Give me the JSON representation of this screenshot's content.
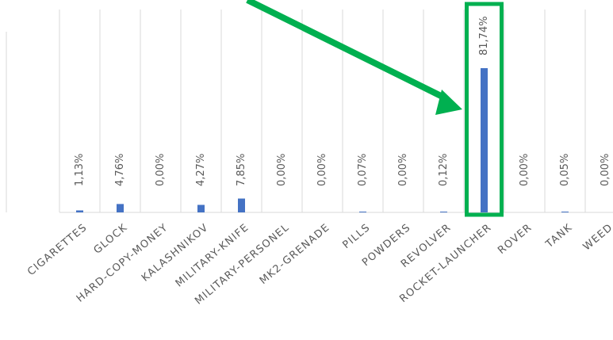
{
  "chart_data": {
    "type": "bar",
    "title": "",
    "xlabel": "",
    "ylabel": "",
    "categories": [
      "CIGARETTES",
      "GLOCK",
      "HARD-COPY-MONEY",
      "KALASHNIKOV",
      "MILITARY-KNIFE",
      "MILITARY-PERSONEL",
      "MK2-GRENADE",
      "PILLS",
      "POWDERS",
      "REVOLVER",
      "ROCKET-LAUNCHER",
      "ROVER",
      "TANK",
      "WEED"
    ],
    "values": [
      1.13,
      4.76,
      0.0,
      4.27,
      7.85,
      0.0,
      0.0,
      0.07,
      0.0,
      0.12,
      81.74,
      0.0,
      0.05,
      0.0
    ],
    "data_labels": [
      "1,13%",
      "4,76%",
      "0,00%",
      "4,27%",
      "7,85%",
      "0,00%",
      "0,00%",
      "0,07%",
      "0,00%",
      "0,12%",
      "81,74%",
      "0,00%",
      "0,05%",
      "0,00%"
    ],
    "ylim": [
      0,
      100
    ],
    "grid": "vertical",
    "highlight": {
      "category": "ROCKET-LAUNCHER",
      "color": "#00b050",
      "arrow": true
    },
    "colors": {
      "bar": "#4472c4",
      "grid": "#d9d9d9",
      "label": "#595959",
      "highlight": "#00b050"
    }
  }
}
